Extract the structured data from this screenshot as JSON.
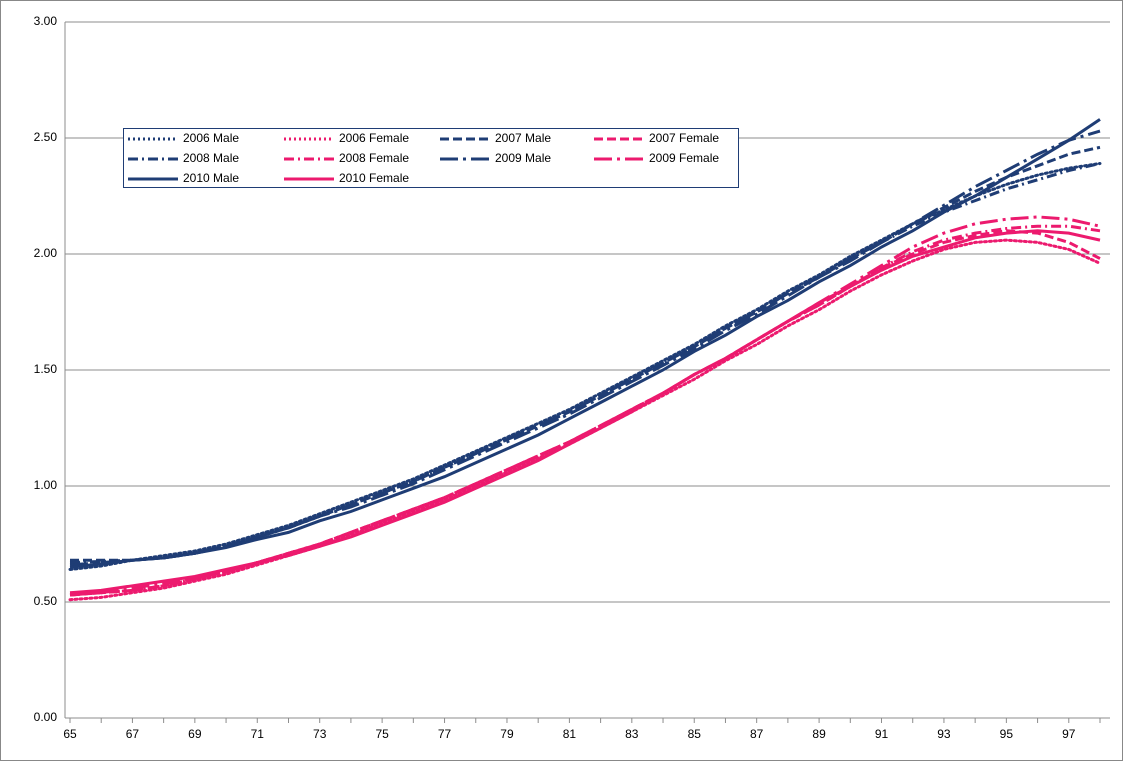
{
  "chart_data": {
    "type": "line",
    "categories": [
      "65",
      null,
      "67",
      null,
      "69",
      null,
      "71",
      null,
      "73",
      null,
      "75",
      null,
      "77",
      null,
      "79",
      null,
      "81",
      null,
      "83",
      null,
      "85",
      null,
      "87",
      null,
      "89",
      null,
      "91",
      null,
      "93",
      null,
      "95",
      null,
      "97",
      null
    ],
    "ylim": [
      0,
      3
    ],
    "yticks": [
      {
        "value": 0,
        "label": "0.00"
      },
      {
        "value": 0.5,
        "label": "0.50"
      },
      {
        "value": 1,
        "label": "1.00"
      },
      {
        "value": 1.5,
        "label": "1.50"
      },
      {
        "value": 2,
        "label": "2.00"
      },
      {
        "value": 2.5,
        "label": "2.50"
      },
      {
        "value": 3,
        "label": "3.00"
      }
    ],
    "grid": true,
    "series": [
      {
        "name": "2006 Male",
        "color": "#1f3d75",
        "dash": "dot",
        "values": [
          0.64,
          0.655,
          0.68,
          0.7,
          0.72,
          0.75,
          0.79,
          0.83,
          0.88,
          0.93,
          0.98,
          1.03,
          1.09,
          1.15,
          1.21,
          1.27,
          1.33,
          1.4,
          1.47,
          1.54,
          1.61,
          1.69,
          1.76,
          1.84,
          1.91,
          1.99,
          2.06,
          2.13,
          2.19,
          2.25,
          2.3,
          2.34,
          2.37,
          2.39
        ]
      },
      {
        "name": "2006 Female",
        "color": "#ec1a6e",
        "dash": "dot",
        "values": [
          0.51,
          0.52,
          0.54,
          0.56,
          0.59,
          0.62,
          0.66,
          0.7,
          0.74,
          0.79,
          0.84,
          0.89,
          0.94,
          1.0,
          1.06,
          1.12,
          1.18,
          1.25,
          1.32,
          1.39,
          1.46,
          1.54,
          1.61,
          1.69,
          1.76,
          1.84,
          1.91,
          1.97,
          2.02,
          2.05,
          2.06,
          2.05,
          2.02,
          1.96
        ]
      },
      {
        "name": "2007 Male",
        "color": "#1f3d75",
        "dash": "dash",
        "values": [
          0.68,
          0.68,
          0.68,
          0.69,
          0.71,
          0.74,
          0.78,
          0.82,
          0.87,
          0.92,
          0.97,
          1.02,
          1.08,
          1.14,
          1.2,
          1.26,
          1.32,
          1.39,
          1.46,
          1.53,
          1.6,
          1.68,
          1.75,
          1.83,
          1.9,
          1.98,
          2.05,
          2.13,
          2.2,
          2.27,
          2.33,
          2.38,
          2.43,
          2.46
        ]
      },
      {
        "name": "2007 Female",
        "color": "#ec1a6e",
        "dash": "dash",
        "values": [
          0.53,
          0.54,
          0.55,
          0.57,
          0.6,
          0.63,
          0.67,
          0.71,
          0.75,
          0.8,
          0.85,
          0.9,
          0.95,
          1.01,
          1.07,
          1.13,
          1.19,
          1.26,
          1.33,
          1.4,
          1.48,
          1.55,
          1.63,
          1.71,
          1.78,
          1.86,
          1.94,
          2.0,
          2.05,
          2.08,
          2.1,
          2.09,
          2.05,
          1.98
        ]
      },
      {
        "name": "2008 Male",
        "color": "#1f3d75",
        "dash": "dashdot",
        "values": [
          0.67,
          0.675,
          0.68,
          0.69,
          0.71,
          0.74,
          0.78,
          0.82,
          0.87,
          0.92,
          0.97,
          1.02,
          1.08,
          1.14,
          1.2,
          1.26,
          1.32,
          1.39,
          1.46,
          1.53,
          1.6,
          1.68,
          1.75,
          1.83,
          1.9,
          1.98,
          2.05,
          2.12,
          2.18,
          2.23,
          2.28,
          2.32,
          2.36,
          2.39
        ]
      },
      {
        "name": "2008 Female",
        "color": "#ec1a6e",
        "dash": "dashdot",
        "values": [
          0.53,
          0.54,
          0.55,
          0.57,
          0.6,
          0.63,
          0.67,
          0.71,
          0.75,
          0.8,
          0.85,
          0.9,
          0.95,
          1.01,
          1.07,
          1.13,
          1.19,
          1.26,
          1.33,
          1.4,
          1.48,
          1.55,
          1.63,
          1.71,
          1.78,
          1.86,
          1.94,
          2.01,
          2.06,
          2.09,
          2.11,
          2.12,
          2.12,
          2.1
        ]
      },
      {
        "name": "2009 Male",
        "color": "#1f3d75",
        "dash": "longdashdot",
        "values": [
          0.66,
          0.67,
          0.68,
          0.69,
          0.71,
          0.74,
          0.78,
          0.82,
          0.87,
          0.91,
          0.96,
          1.01,
          1.07,
          1.13,
          1.19,
          1.25,
          1.31,
          1.38,
          1.45,
          1.52,
          1.59,
          1.67,
          1.74,
          1.82,
          1.9,
          1.97,
          2.05,
          2.13,
          2.21,
          2.29,
          2.36,
          2.43,
          2.49,
          2.53
        ]
      },
      {
        "name": "2009 Female",
        "color": "#ec1a6e",
        "dash": "longdashdot",
        "values": [
          0.53,
          0.54,
          0.56,
          0.58,
          0.6,
          0.63,
          0.67,
          0.71,
          0.75,
          0.8,
          0.85,
          0.9,
          0.95,
          1.01,
          1.07,
          1.13,
          1.19,
          1.26,
          1.33,
          1.4,
          1.48,
          1.55,
          1.63,
          1.71,
          1.79,
          1.87,
          1.95,
          2.03,
          2.09,
          2.13,
          2.15,
          2.16,
          2.15,
          2.12
        ]
      },
      {
        "name": "2010 Male",
        "color": "#1f3d75",
        "dash": "solid",
        "values": [
          0.65,
          0.665,
          0.68,
          0.69,
          0.71,
          0.735,
          0.77,
          0.8,
          0.85,
          0.89,
          0.94,
          0.99,
          1.04,
          1.1,
          1.16,
          1.22,
          1.29,
          1.36,
          1.43,
          1.5,
          1.58,
          1.65,
          1.73,
          1.8,
          1.88,
          1.95,
          2.03,
          2.1,
          2.18,
          2.25,
          2.33,
          2.41,
          2.49,
          2.58
        ]
      },
      {
        "name": "2010 Female",
        "color": "#ec1a6e",
        "dash": "solid",
        "values": [
          0.54,
          0.55,
          0.57,
          0.59,
          0.61,
          0.64,
          0.67,
          0.7,
          0.74,
          0.78,
          0.83,
          0.88,
          0.93,
          0.99,
          1.05,
          1.11,
          1.18,
          1.25,
          1.32,
          1.4,
          1.48,
          1.55,
          1.63,
          1.71,
          1.79,
          1.86,
          1.93,
          1.99,
          2.03,
          2.07,
          2.09,
          2.1,
          2.09,
          2.06
        ]
      }
    ]
  }
}
